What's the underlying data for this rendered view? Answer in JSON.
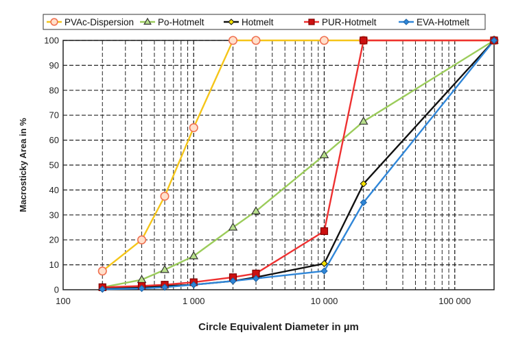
{
  "chart_data": {
    "type": "line",
    "xlabel": "Circle Equivalent Diameter in µm",
    "ylabel": "Macrosticky Area in %",
    "xscale": "log",
    "xlim": [
      100,
      200000
    ],
    "ylim": [
      0,
      100
    ],
    "x_ticks": [
      100,
      1000,
      10000,
      100000
    ],
    "x_tick_labels": [
      "100",
      "1 000",
      "10 000",
      "100 000"
    ],
    "y_ticks": [
      0,
      10,
      20,
      30,
      40,
      50,
      60,
      70,
      80,
      90,
      100
    ],
    "y_tick_labels": [
      "0",
      "10",
      "20",
      "30",
      "40",
      "50",
      "60",
      "70",
      "80",
      "90",
      "100"
    ],
    "grid": true,
    "legend_position": "top",
    "series": [
      {
        "name": "PVAc-Dispersion",
        "color": "#f5c518",
        "marker": "circle",
        "marker_fill": "#ffe0cc",
        "marker_stroke": "#f07050",
        "x": [
          200,
          400,
          600,
          1000,
          2000,
          3000,
          10000,
          20000,
          200000
        ],
        "y": [
          7.5,
          20,
          37.5,
          65,
          100,
          100,
          100,
          100,
          100
        ]
      },
      {
        "name": "Po-Hotmelt",
        "color": "#9bcc5a",
        "marker": "triangle",
        "marker_fill": "#b8e08c",
        "marker_stroke": "#333333",
        "x": [
          200,
          400,
          600,
          1000,
          2000,
          3000,
          10000,
          20000,
          200000
        ],
        "y": [
          1,
          4,
          8,
          13.5,
          25,
          31.5,
          54,
          67.5,
          100
        ]
      },
      {
        "name": "Hotmelt",
        "color": "#111111",
        "marker": "diamond",
        "marker_fill": "#f5e100",
        "marker_stroke": "#111111",
        "x": [
          200,
          400,
          600,
          1000,
          2000,
          3000,
          10000,
          20000,
          200000
        ],
        "y": [
          0.5,
          1,
          1.5,
          2,
          3.5,
          5,
          10.5,
          42.5,
          100
        ]
      },
      {
        "name": "PUR-Hotmelt",
        "color": "#ee3030",
        "marker": "square",
        "marker_fill": "#cc1010",
        "marker_stroke": "#800000",
        "x": [
          200,
          400,
          600,
          1000,
          2000,
          3000,
          10000,
          20000,
          200000
        ],
        "y": [
          1,
          1.5,
          2,
          3,
          5,
          6.5,
          23.5,
          100,
          100
        ]
      },
      {
        "name": "EVA-Hotmelt",
        "color": "#2f86d8",
        "marker": "diamond",
        "marker_fill": "#2f86d8",
        "marker_stroke": "#1a5fa0",
        "x": [
          200,
          400,
          600,
          1000,
          2000,
          3000,
          10000,
          20000,
          200000
        ],
        "y": [
          0.2,
          0.5,
          1,
          2,
          3.5,
          4.5,
          7.5,
          35,
          100
        ]
      }
    ]
  }
}
